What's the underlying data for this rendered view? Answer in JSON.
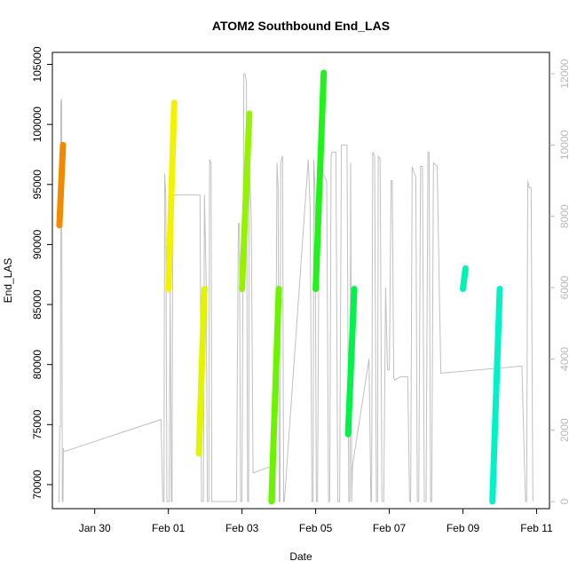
{
  "chart_data": {
    "type": "line",
    "title": "ATOM2 Southbound End_LAS",
    "xlabel": "Date",
    "ylabel": "End_LAS",
    "x_ticks": [
      "Jan 30",
      "Feb 01",
      "Feb 03",
      "Feb 05",
      "Feb 07",
      "Feb 09",
      "Feb 11"
    ],
    "y_ticks": [
      "70000",
      "75000",
      "80000",
      "85000",
      "90000",
      "95000",
      "100000",
      "105000"
    ],
    "y2_ticks": [
      "0",
      "2000",
      "4000",
      "6000",
      "8000",
      "10000",
      "12000"
    ],
    "ylim": [
      68000,
      106000
    ],
    "y2lim": [
      -200,
      12600
    ],
    "xlim_days_from_jan30": [
      -1.15,
      12.35
    ],
    "grey_series": {
      "name": "",
      "color": "#c0c0c0",
      "axis": "right",
      "points": [
        [
          -1.0,
          0
        ],
        [
          -0.97,
          0
        ],
        [
          -0.95,
          2100
        ],
        [
          -0.93,
          2100
        ],
        [
          -0.92,
          11200
        ],
        [
          -0.9,
          11300
        ],
        [
          -0.88,
          0
        ],
        [
          -0.86,
          0
        ],
        [
          -0.85,
          1500
        ],
        [
          -0.84,
          1400
        ],
        [
          1.8,
          2300
        ],
        [
          1.85,
          0
        ],
        [
          1.88,
          0
        ],
        [
          1.9,
          9200
        ],
        [
          1.93,
          8500
        ],
        [
          1.96,
          0
        ],
        [
          2.02,
          0
        ],
        [
          2.05,
          6000
        ],
        [
          2.08,
          0
        ],
        [
          2.1,
          0
        ],
        [
          2.12,
          8600
        ],
        [
          2.14,
          8600
        ],
        [
          2.86,
          8600
        ],
        [
          2.9,
          0
        ],
        [
          2.95,
          0
        ],
        [
          2.98,
          8600
        ],
        [
          3.03,
          6000
        ],
        [
          3.06,
          0
        ],
        [
          3.1,
          0
        ],
        [
          3.12,
          9600
        ],
        [
          3.16,
          9500
        ],
        [
          3.18,
          0
        ],
        [
          3.2,
          0
        ],
        [
          3.8,
          0
        ],
        [
          3.85,
          0
        ],
        [
          3.9,
          7800
        ],
        [
          3.93,
          7800
        ],
        [
          3.96,
          0
        ],
        [
          4.0,
          0
        ],
        [
          4.05,
          12000
        ],
        [
          4.08,
          12000
        ],
        [
          4.12,
          11800
        ],
        [
          4.15,
          0
        ],
        [
          4.18,
          0
        ],
        [
          4.2,
          9500
        ],
        [
          4.25,
          8000
        ],
        [
          4.3,
          800
        ],
        [
          4.82,
          1000
        ],
        [
          4.9,
          0
        ],
        [
          4.95,
          9500
        ],
        [
          4.98,
          8800
        ],
        [
          5.01,
          0
        ],
        [
          5.03,
          0
        ],
        [
          5.05,
          9500
        ],
        [
          5.1,
          9700
        ],
        [
          5.13,
          0
        ],
        [
          5.15,
          0
        ],
        [
          5.8,
          9600
        ],
        [
          5.85,
          8200
        ],
        [
          5.9,
          0
        ],
        [
          5.93,
          0
        ],
        [
          5.95,
          9600
        ],
        [
          5.98,
          8800
        ],
        [
          6.02,
          0
        ],
        [
          6.05,
          0
        ],
        [
          6.1,
          9500
        ],
        [
          6.15,
          9300
        ],
        [
          6.3,
          9000
        ],
        [
          6.35,
          0
        ],
        [
          6.38,
          0
        ],
        [
          6.42,
          9700
        ],
        [
          6.45,
          9800
        ],
        [
          6.55,
          9800
        ],
        [
          6.6,
          0
        ],
        [
          6.65,
          0
        ],
        [
          6.7,
          10000
        ],
        [
          6.75,
          10000
        ],
        [
          6.85,
          10000
        ],
        [
          6.9,
          0
        ],
        [
          6.93,
          0
        ],
        [
          6.95,
          9500
        ],
        [
          6.98,
          0
        ],
        [
          7.0,
          1000
        ],
        [
          7.45,
          4000
        ],
        [
          7.5,
          0
        ],
        [
          7.52,
          0
        ],
        [
          7.55,
          9800
        ],
        [
          7.6,
          9700
        ],
        [
          7.65,
          0
        ],
        [
          7.68,
          0
        ],
        [
          7.7,
          9700
        ],
        [
          7.75,
          9600
        ],
        [
          7.8,
          0
        ],
        [
          7.85,
          0
        ],
        [
          7.9,
          6000
        ],
        [
          7.95,
          3700
        ],
        [
          8.0,
          3700
        ],
        [
          8.05,
          9000
        ],
        [
          8.08,
          9000
        ],
        [
          8.12,
          3500
        ],
        [
          8.15,
          3400
        ],
        [
          8.3,
          3500
        ],
        [
          8.5,
          3500
        ],
        [
          8.55,
          0
        ],
        [
          8.58,
          0
        ],
        [
          8.62,
          9400
        ],
        [
          8.68,
          9200
        ],
        [
          8.72,
          9100
        ],
        [
          8.76,
          0
        ],
        [
          8.8,
          0
        ],
        [
          8.85,
          9400
        ],
        [
          8.9,
          9400
        ],
        [
          8.95,
          0
        ],
        [
          9.0,
          0
        ],
        [
          9.05,
          9800
        ],
        [
          9.08,
          9800
        ],
        [
          9.12,
          0
        ],
        [
          9.15,
          0
        ],
        [
          9.2,
          9500
        ],
        [
          9.3,
          9400
        ],
        [
          9.4,
          3600
        ],
        [
          11.6,
          3800
        ],
        [
          11.7,
          0
        ],
        [
          11.73,
          0
        ],
        [
          11.76,
          9000
        ],
        [
          11.8,
          8800
        ],
        [
          11.85,
          8800
        ],
        [
          11.9,
          0
        ]
      ]
    },
    "series": [
      {
        "name": "",
        "color": "#f28a00",
        "x": [
          -0.96,
          -0.86
        ],
        "y": [
          91600,
          98300
        ]
      },
      {
        "name": "",
        "color": "#f3f300",
        "x": [
          2.0,
          2.16
        ],
        "y": [
          86300,
          101800
        ]
      },
      {
        "name": "",
        "color": "#e4f300",
        "x": [
          2.83,
          2.98
        ],
        "y": [
          72600,
          86300
        ]
      },
      {
        "name": "",
        "color": "#96f300",
        "x": [
          4.0,
          4.2
        ],
        "y": [
          86300,
          100900
        ]
      },
      {
        "name": "",
        "color": "#6bf300",
        "x": [
          4.8,
          5.0
        ],
        "y": [
          68600,
          86300
        ]
      },
      {
        "name": "",
        "color": "#20f31a",
        "x": [
          6.0,
          6.22
        ],
        "y": [
          86300,
          104300
        ]
      },
      {
        "name": "",
        "color": "#00f349",
        "x": [
          6.88,
          7.05
        ],
        "y": [
          74200,
          86300
        ]
      },
      {
        "name": "",
        "color": "#00f3b3",
        "x": [
          10.0,
          10.07
        ],
        "y": [
          86300,
          88000
        ]
      },
      {
        "name": "",
        "color": "#00f3c8",
        "x": [
          10.8,
          11.0
        ],
        "y": [
          68600,
          86300
        ]
      }
    ]
  }
}
